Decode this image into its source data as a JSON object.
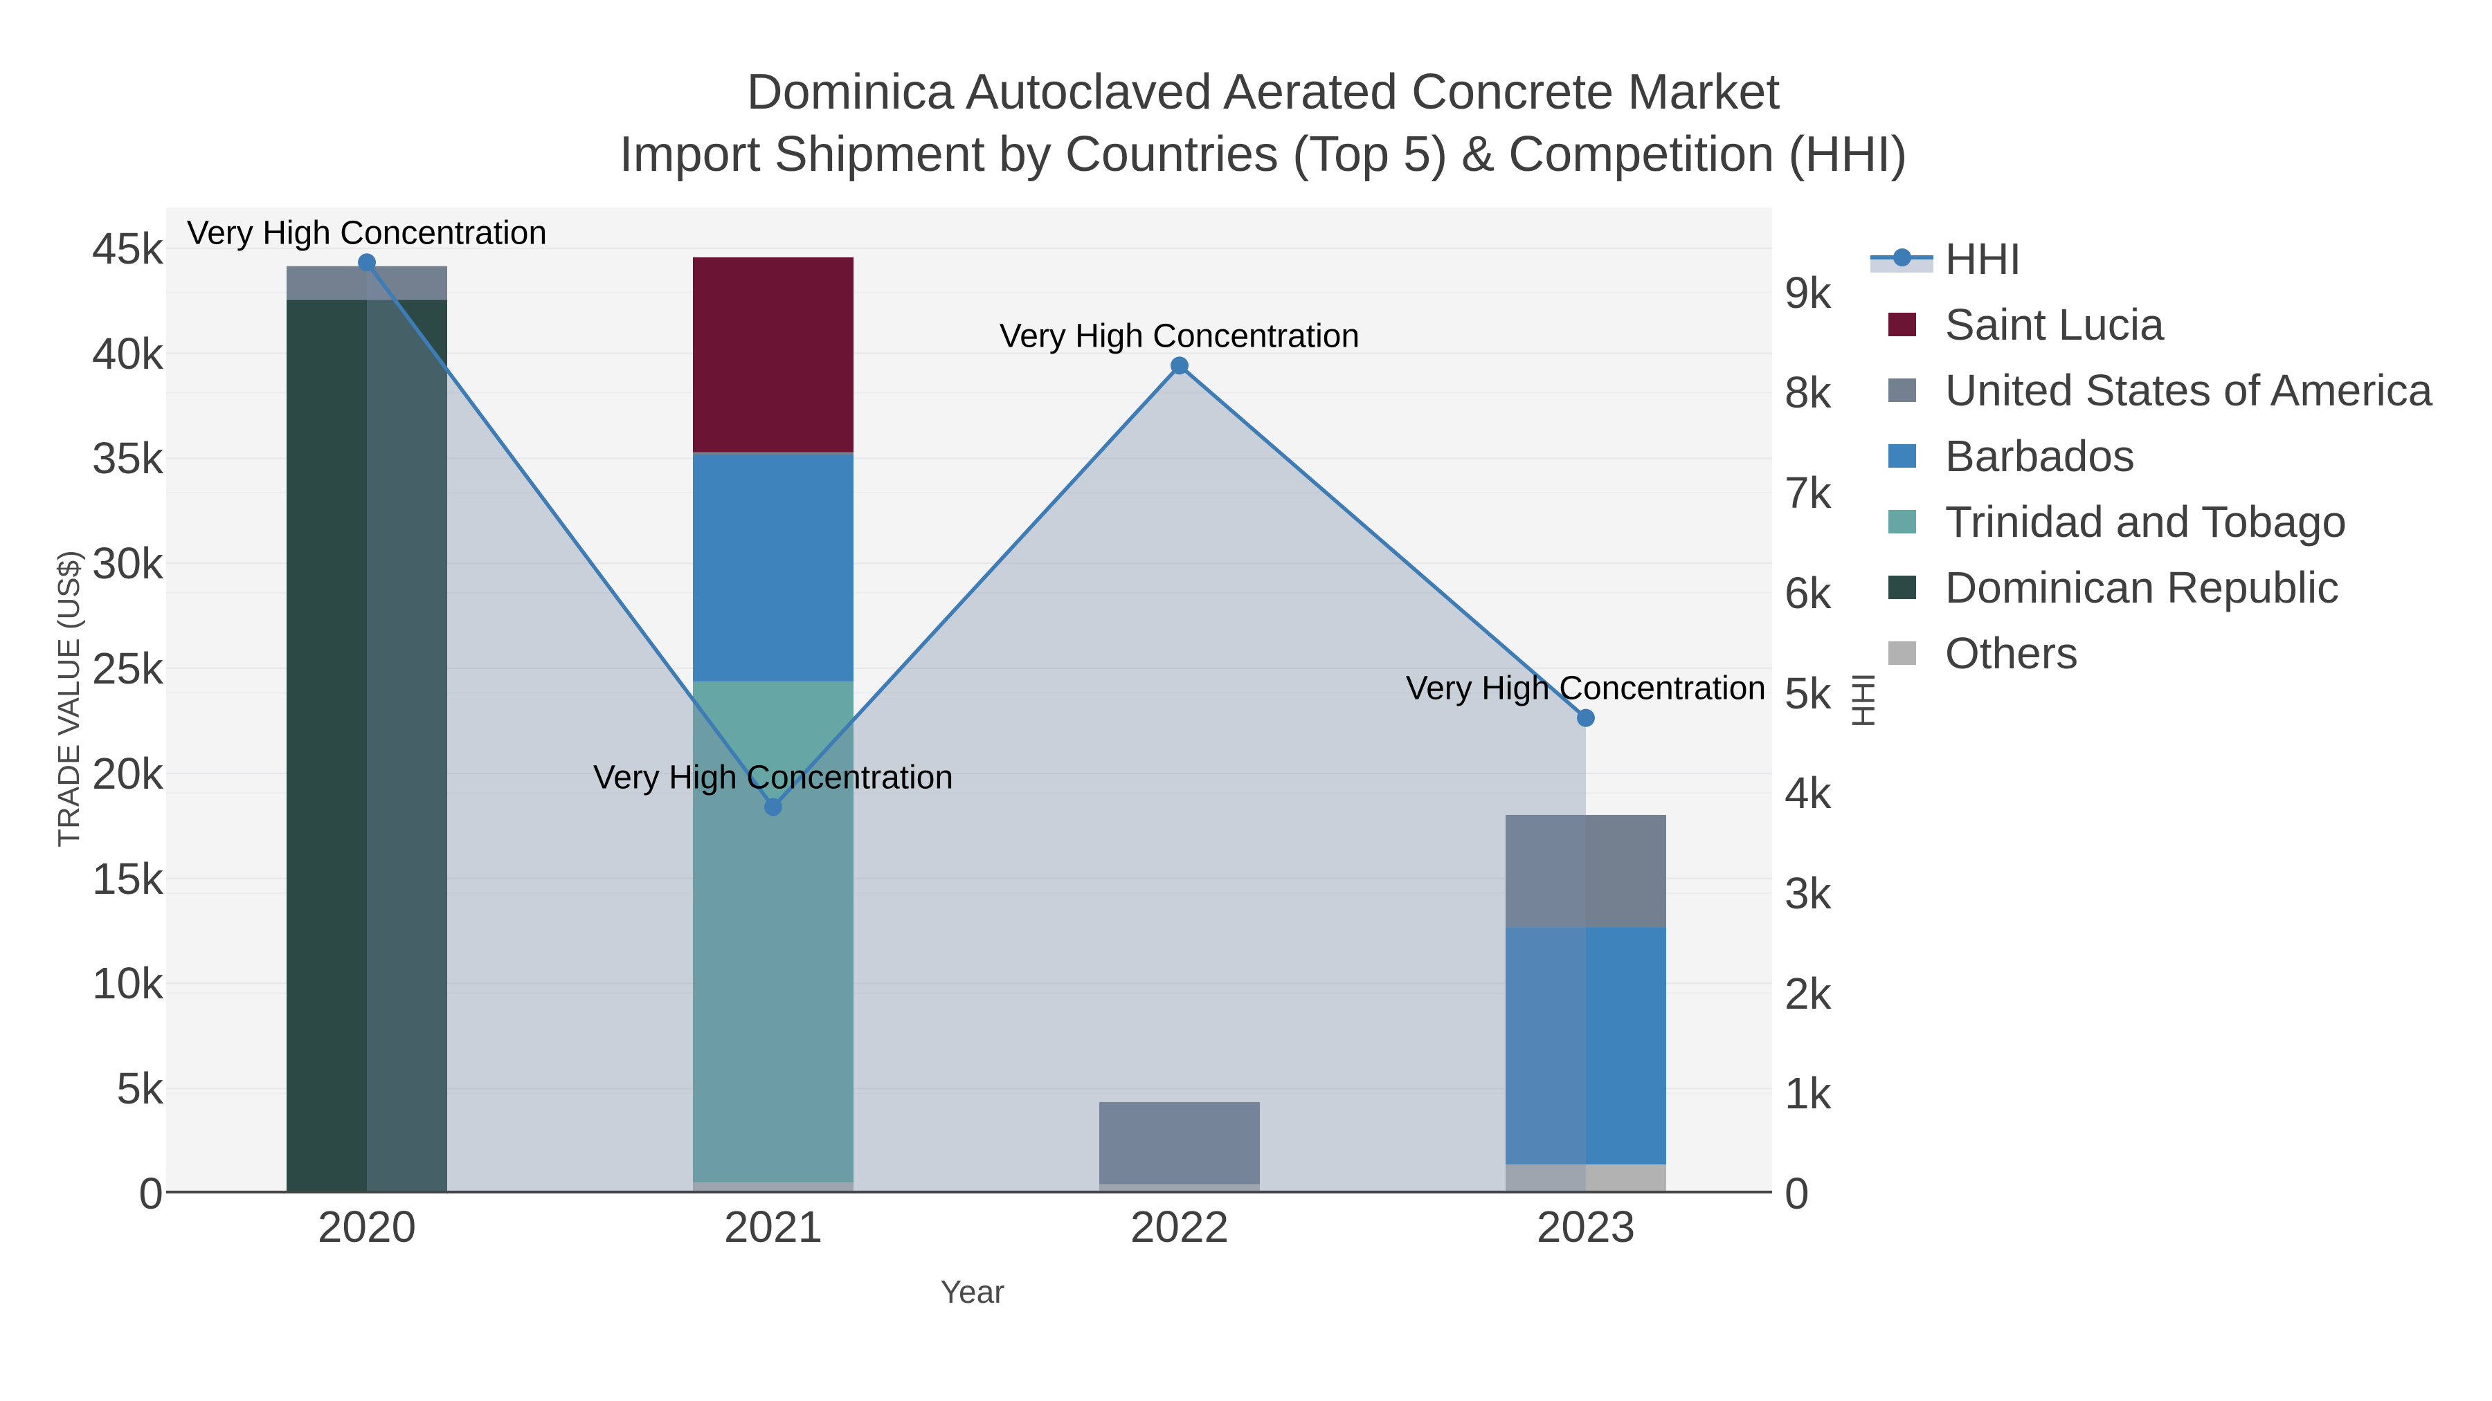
{
  "title": {
    "line1": "Dominica Autoclaved Aerated Concrete Market",
    "line2": "Import Shipment by Countries (Top 5) & Competition (HHI)"
  },
  "axes": {
    "x": {
      "label": "Year"
    },
    "left": {
      "label": "TRADE VALUE (US$)",
      "ticks": [
        {
          "v": 0,
          "t": "0"
        },
        {
          "v": 5000,
          "t": "5k"
        },
        {
          "v": 10000,
          "t": "10k"
        },
        {
          "v": 15000,
          "t": "15k"
        },
        {
          "v": 20000,
          "t": "20k"
        },
        {
          "v": 25000,
          "t": "25k"
        },
        {
          "v": 30000,
          "t": "30k"
        },
        {
          "v": 35000,
          "t": "35k"
        },
        {
          "v": 40000,
          "t": "40k"
        },
        {
          "v": 45000,
          "t": "45k"
        }
      ]
    },
    "right": {
      "label": "HHI",
      "ticks": [
        {
          "v": 0,
          "t": "0"
        },
        {
          "v": 1000,
          "t": "1k"
        },
        {
          "v": 2000,
          "t": "2k"
        },
        {
          "v": 3000,
          "t": "3k"
        },
        {
          "v": 4000,
          "t": "4k"
        },
        {
          "v": 5000,
          "t": "5k"
        },
        {
          "v": 6000,
          "t": "6k"
        },
        {
          "v": 7000,
          "t": "7k"
        },
        {
          "v": 8000,
          "t": "8k"
        },
        {
          "v": 9000,
          "t": "9k"
        }
      ]
    }
  },
  "legend": [
    {
      "label": "HHI",
      "color": "#3e7cb6",
      "type": "line",
      "band": "#ccd3de"
    },
    {
      "label": "Saint Lucia",
      "color": "#6b1433",
      "type": "swatch"
    },
    {
      "label": "United States of America",
      "color": "#73808f",
      "type": "swatch"
    },
    {
      "label": "Barbados",
      "color": "#3f83bd",
      "type": "swatch"
    },
    {
      "label": "Trinidad and Tobago",
      "color": "#66a6a4",
      "type": "swatch"
    },
    {
      "label": "Dominican Republic",
      "color": "#2c4946",
      "type": "swatch"
    },
    {
      "label": "Others",
      "color": "#b2b2b2",
      "type": "swatch"
    }
  ],
  "chart_data": {
    "type": "combo (stacked bar + line with area fill)",
    "categories": [
      "2020",
      "2021",
      "2022",
      "2023"
    ],
    "bar_value_unit": "US$ trade value, left axis",
    "series": [
      {
        "name": "Others",
        "color": "#b2b2b2",
        "values": [
          0,
          530,
          440,
          1380
        ]
      },
      {
        "name": "Dominican Republic",
        "color": "#2c4946",
        "values": [
          42550,
          0,
          0,
          0
        ]
      },
      {
        "name": "Trinidad and Tobago",
        "color": "#66a6a4",
        "values": [
          0,
          23850,
          0,
          0
        ]
      },
      {
        "name": "Barbados",
        "color": "#3f83bd",
        "values": [
          0,
          10800,
          0,
          11300
        ]
      },
      {
        "name": "United States of America",
        "color": "#73808f",
        "values": [
          1600,
          110,
          3910,
          5340
        ]
      },
      {
        "name": "Saint Lucia",
        "color": "#6b1433",
        "values": [
          0,
          9280,
          0,
          0
        ]
      }
    ],
    "line_series": {
      "name": "HHI",
      "axis": "right",
      "color": "#3e7cb6",
      "area_fill": "rgba(120,140,170,0.35)",
      "values": [
        9300,
        3860,
        8270,
        4750
      ]
    },
    "annotations": [
      {
        "category": "2020",
        "text": "Very High Concentration"
      },
      {
        "category": "2021",
        "text": "Very High Concentration"
      },
      {
        "category": "2022",
        "text": "Very High Concentration"
      },
      {
        "category": "2023",
        "text": "Very High Concentration"
      }
    ],
    "ylim_left": [
      0,
      46940
    ],
    "ylim_right": [
      0,
      9848
    ],
    "grid": "horizontal gridlines for both axes",
    "legend_position": "right",
    "plot_background": "#f4f4f5"
  },
  "colors": {
    "page_background": "#ffffff",
    "plot_background": "#f4f4f5",
    "gridline_left": "#e7e7ea",
    "gridline_right": "#ededf0",
    "axis_line": "#444444",
    "text": "#3f3f3f",
    "annotation_text": "#000000"
  }
}
